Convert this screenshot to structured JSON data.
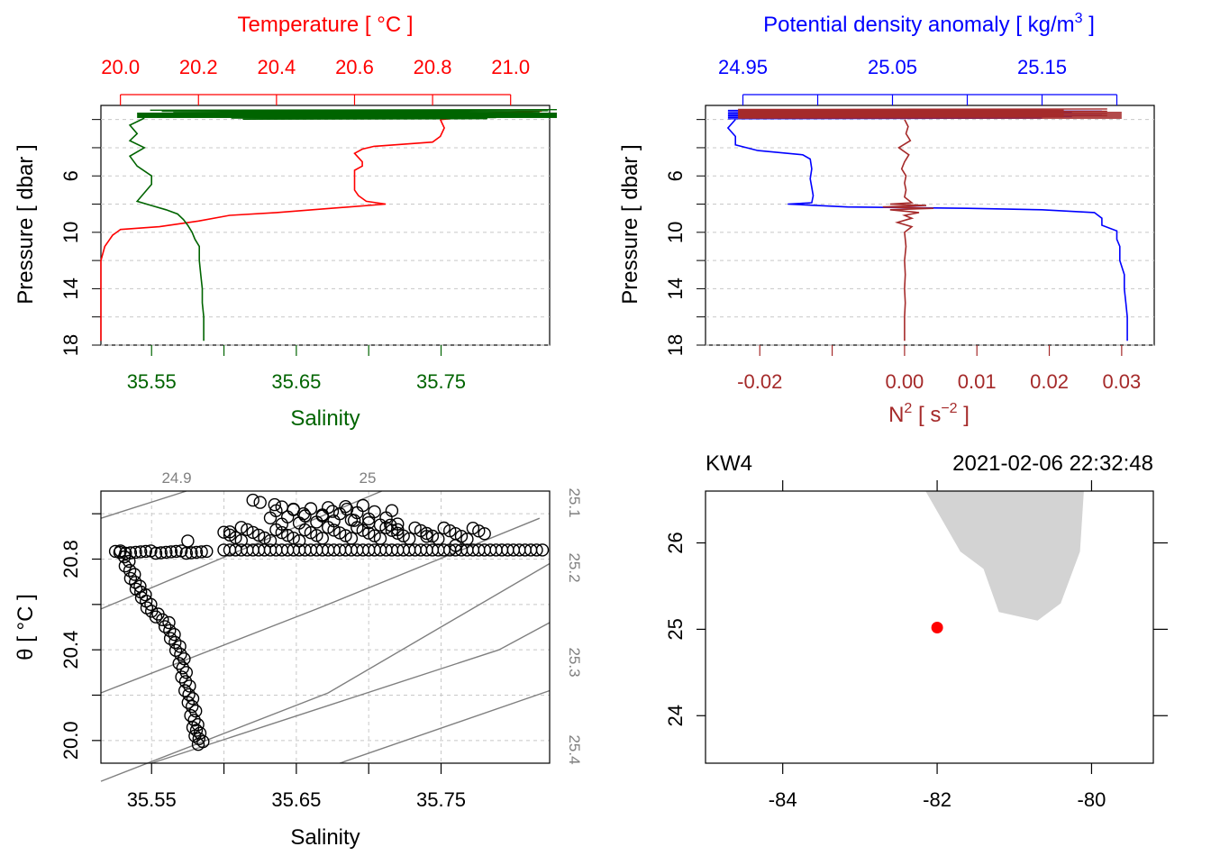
{
  "chart_data": [
    {
      "type": "line",
      "panel": "temperature-salinity-profile",
      "top_axis_label": "Temperature [ °C ]",
      "bottom_axis_label": "Salinity",
      "ylabel": "Pressure [ dbar ]",
      "temperature_ticks": [
        "20.0",
        "20.2",
        "20.4",
        "20.6",
        "20.8",
        "21.0"
      ],
      "temperature_range": [
        19.95,
        21.1
      ],
      "salinity_ticks": [
        "35.55",
        "35.65",
        "35.75"
      ],
      "salinity_range": [
        35.515,
        35.825
      ],
      "pressure_ticks": [
        "6",
        "10",
        "14",
        "18"
      ],
      "pressure_range": [
        18.0,
        1.0
      ],
      "colors": {
        "temperature": "#ff0000",
        "salinity": "#006400"
      },
      "series": [
        {
          "name": "temperature",
          "points": [
            [
              20.82,
              2.0
            ],
            [
              20.83,
              2.6
            ],
            [
              20.82,
              3.2
            ],
            [
              20.8,
              3.6
            ],
            [
              20.65,
              3.9
            ],
            [
              20.62,
              4.1
            ],
            [
              20.6,
              4.4
            ],
            [
              20.62,
              5.0
            ],
            [
              20.62,
              5.3
            ],
            [
              20.6,
              5.6
            ],
            [
              20.6,
              6.0
            ],
            [
              20.6,
              6.3
            ],
            [
              20.6,
              6.6
            ],
            [
              20.6,
              7.0
            ],
            [
              20.61,
              7.4
            ],
            [
              20.63,
              7.8
            ],
            [
              20.68,
              8.0
            ],
            [
              20.54,
              8.3
            ],
            [
              20.4,
              8.6
            ],
            [
              20.28,
              8.8
            ],
            [
              20.2,
              9.2
            ],
            [
              20.1,
              9.6
            ],
            [
              20.0,
              9.8
            ],
            [
              19.98,
              10.2
            ],
            [
              19.97,
              10.6
            ],
            [
              19.96,
              11.0
            ],
            [
              19.95,
              12.0
            ],
            [
              19.95,
              13.0
            ],
            [
              19.95,
              14.0
            ],
            [
              19.95,
              15.0
            ],
            [
              19.95,
              16.0
            ],
            [
              19.95,
              17.0
            ],
            [
              19.95,
              17.7
            ]
          ]
        },
        {
          "name": "salinity",
          "points": [
            [
              35.545,
              1.9
            ],
            [
              35.535,
              2.4
            ],
            [
              35.54,
              3.0
            ],
            [
              35.535,
              3.5
            ],
            [
              35.545,
              4.0
            ],
            [
              35.535,
              4.6
            ],
            [
              35.54,
              5.3
            ],
            [
              35.55,
              6.0
            ],
            [
              35.55,
              6.6
            ],
            [
              35.545,
              7.2
            ],
            [
              35.54,
              7.8
            ],
            [
              35.55,
              8.1
            ],
            [
              35.56,
              8.4
            ],
            [
              35.568,
              8.7
            ],
            [
              35.572,
              9.1
            ],
            [
              35.575,
              9.5
            ],
            [
              35.578,
              10.0
            ],
            [
              35.58,
              10.5
            ],
            [
              35.583,
              11.0
            ],
            [
              35.583,
              12.0
            ],
            [
              35.584,
              13.0
            ],
            [
              35.585,
              14.0
            ],
            [
              35.585,
              15.0
            ],
            [
              35.586,
              16.0
            ],
            [
              35.586,
              17.0
            ],
            [
              35.586,
              17.7
            ]
          ]
        }
      ]
    },
    {
      "type": "line",
      "panel": "density-buoyancy-profile",
      "top_axis_label": "Potential density anomaly [ kg/m",
      "top_axis_label_sup": "3",
      "top_axis_label_end": " ]",
      "bottom_axis_label": "N",
      "bottom_axis_label_sup": "2",
      "bottom_axis_label_mid": " [ s",
      "bottom_axis_label_sup2": "−2",
      "bottom_axis_label_end": " ]",
      "ylabel": "Pressure [ dbar ]",
      "density_ticks": [
        "24.95",
        "25.05",
        "25.15"
      ],
      "density_range": [
        24.925,
        25.225
      ],
      "n2_ticks": [
        "-0.02",
        "0.00",
        "0.01",
        "0.02",
        "0.03"
      ],
      "n2_range": [
        -0.0275,
        0.0345
      ],
      "pressure_ticks": [
        "6",
        "10",
        "14",
        "18"
      ],
      "pressure_range": [
        18.0,
        1.0
      ],
      "colors": {
        "density": "#0000ff",
        "n2": "#a52a2a"
      },
      "series": [
        {
          "name": "density",
          "points": [
            [
              24.945,
              2.0
            ],
            [
              24.94,
              2.6
            ],
            [
              24.945,
              3.2
            ],
            [
              24.945,
              3.8
            ],
            [
              24.96,
              4.2
            ],
            [
              24.99,
              4.5
            ],
            [
              24.995,
              4.8
            ],
            [
              24.996,
              5.5
            ],
            [
              24.995,
              6.2
            ],
            [
              24.996,
              6.8
            ],
            [
              24.997,
              7.4
            ],
            [
              24.996,
              7.9
            ],
            [
              24.98,
              8.0
            ],
            [
              25.02,
              8.2
            ],
            [
              25.1,
              8.3
            ],
            [
              25.15,
              8.4
            ],
            [
              25.185,
              8.6
            ],
            [
              25.19,
              9.0
            ],
            [
              25.19,
              9.5
            ],
            [
              25.2,
              9.9
            ],
            [
              25.2,
              10.5
            ],
            [
              25.202,
              11.0
            ],
            [
              25.202,
              12.0
            ],
            [
              25.205,
              13.0
            ],
            [
              25.205,
              14.0
            ],
            [
              25.206,
              15.0
            ],
            [
              25.207,
              16.0
            ],
            [
              25.207,
              17.0
            ],
            [
              25.207,
              17.7
            ]
          ]
        },
        {
          "name": "n2",
          "points": [
            [
              0.0,
              2.0
            ],
            [
              0.0005,
              2.5
            ],
            [
              0.0002,
              3.0
            ],
            [
              0.0008,
              3.5
            ],
            [
              -0.0008,
              4.0
            ],
            [
              0.0006,
              4.5
            ],
            [
              0.0,
              5.0
            ],
            [
              -0.0004,
              5.5
            ],
            [
              0.0002,
              6.0
            ],
            [
              0.0,
              6.5
            ],
            [
              0.0002,
              7.0
            ],
            [
              0.0,
              7.5
            ],
            [
              0.001,
              7.9
            ],
            [
              -0.002,
              8.0
            ],
            [
              0.003,
              8.1
            ],
            [
              -0.003,
              8.2
            ],
            [
              0.004,
              8.3
            ],
            [
              -0.002,
              8.4
            ],
            [
              0.002,
              8.6
            ],
            [
              0.0,
              8.8
            ],
            [
              0.001,
              9.0
            ],
            [
              -0.001,
              9.3
            ],
            [
              0.001,
              9.6
            ],
            [
              0.0,
              10.0
            ],
            [
              0.0002,
              11.0
            ],
            [
              0.0,
              12.0
            ],
            [
              0.0001,
              13.0
            ],
            [
              0.0,
              14.0
            ],
            [
              0.0001,
              15.0
            ],
            [
              0.0,
              16.0
            ],
            [
              0.0,
              17.0
            ],
            [
              0.0,
              17.7
            ]
          ]
        }
      ]
    },
    {
      "type": "scatter",
      "panel": "ts-diagram",
      "xlabel": "Salinity",
      "ylabel": "θ [ °C ]",
      "x_ticks": [
        "35.55",
        "35.65",
        "35.75"
      ],
      "x_range": [
        35.515,
        35.825
      ],
      "y_ticks": [
        "20.0",
        "20.4",
        "20.8"
      ],
      "y_range": [
        19.9,
        21.1
      ],
      "isopycnal_labels_top": [
        "24.9",
        "25"
      ],
      "isopycnal_labels_right": [
        "25.1",
        "25.2",
        "25.3",
        "25.4"
      ],
      "isopycnals": [
        {
          "label": "24.9",
          "points": [
            [
              35.515,
              20.98
            ],
            [
              35.574,
              21.1
            ]
          ]
        },
        {
          "label": "25",
          "points": [
            [
              35.515,
              20.58
            ],
            [
              35.664,
              20.98
            ],
            [
              35.709,
              21.1
            ]
          ]
        },
        {
          "label": "25.1",
          "points": [
            [
              35.515,
              20.21
            ],
            [
              35.664,
              20.58
            ],
            [
              35.818,
              20.98
            ]
          ]
        },
        {
          "label": "25.2",
          "points": [
            [
              35.515,
              19.82
            ],
            [
              35.672,
              20.21
            ],
            [
              35.825,
              20.78
            ]
          ]
        },
        {
          "label": "25.3",
          "points": [
            [
              35.55,
              19.9
            ],
            [
              35.79,
              20.4
            ],
            [
              35.825,
              20.52
            ]
          ]
        },
        {
          "label": "25.4",
          "points": [
            [
              35.68,
              19.9
            ],
            [
              35.825,
              20.22
            ]
          ]
        }
      ],
      "series": [
        {
          "name": "mixed-layer",
          "x_range_points": [
            35.525,
            35.59
          ],
          "y": 20.83
        },
        {
          "name": "surface-spikes",
          "x_range_points": [
            35.6,
            35.825
          ],
          "y_band": [
            20.83,
            21.05
          ]
        },
        {
          "name": "descent",
          "points": [
            [
              35.53,
              20.83
            ],
            [
              35.535,
              20.75
            ],
            [
              35.54,
              20.68
            ],
            [
              35.545,
              20.63
            ],
            [
              35.55,
              20.57
            ],
            [
              35.56,
              20.52
            ],
            [
              35.565,
              20.45
            ],
            [
              35.57,
              20.38
            ],
            [
              35.572,
              20.3
            ],
            [
              35.575,
              20.22
            ],
            [
              35.578,
              20.15
            ],
            [
              35.58,
              20.07
            ],
            [
              35.582,
              20.02
            ],
            [
              35.585,
              19.97
            ]
          ]
        }
      ]
    },
    {
      "type": "scatter",
      "panel": "station-map",
      "station": "KW4",
      "datetime": "2021-02-06 22:32:48",
      "x_ticks": [
        "-84",
        "-82",
        "-80"
      ],
      "x_range": [
        -85.0,
        -79.2
      ],
      "y_ticks": [
        "24",
        "25",
        "26"
      ],
      "y_range": [
        23.45,
        26.6
      ],
      "station_position": [
        -82.0,
        25.02
      ],
      "colors": {
        "station": "#ff0000",
        "land": "#d3d3d3"
      },
      "coastline": [
        [
          -82.15,
          26.6
        ],
        [
          -81.7,
          25.9
        ],
        [
          -81.4,
          25.7
        ],
        [
          -81.2,
          25.2
        ],
        [
          -80.7,
          25.1
        ],
        [
          -80.4,
          25.3
        ],
        [
          -80.15,
          25.9
        ],
        [
          -80.1,
          26.6
        ]
      ]
    }
  ]
}
